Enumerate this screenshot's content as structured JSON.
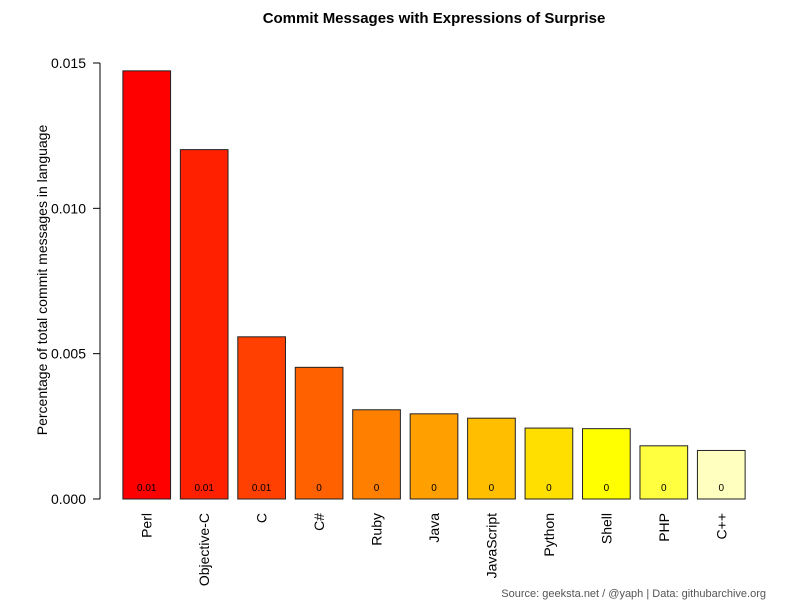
{
  "chart_data": {
    "type": "bar",
    "title": "Commit Messages with Expressions of Surprise",
    "xlabel": "",
    "ylabel": "Percentage of total commit messages in language",
    "ylim": [
      0,
      0.015
    ],
    "yticks": [
      "0.000",
      "0.005",
      "0.010",
      "0.015"
    ],
    "ytick_values": [
      0,
      0.005,
      0.01,
      0.015
    ],
    "categories": [
      "Perl",
      "Objective-C",
      "C",
      "C#",
      "Ruby",
      "Java",
      "JavaScript",
      "Python",
      "Shell",
      "PHP",
      "C++"
    ],
    "values": [
      0.01473,
      0.01202,
      0.00558,
      0.00453,
      0.00307,
      0.00293,
      0.00278,
      0.00244,
      0.00242,
      0.00183,
      0.00167
    ],
    "data_labels": [
      "0.01",
      "0.01",
      "0.01",
      "0",
      "0",
      "0",
      "0",
      "0",
      "0",
      "0",
      "0"
    ],
    "colors": [
      "#FF0000",
      "#FF2000",
      "#FF4000",
      "#FF6000",
      "#FF8000",
      "#FF9F00",
      "#FFBF00",
      "#FFDF00",
      "#FFFF00",
      "#FFFF40",
      "#FFFFBF"
    ],
    "grid": false,
    "legend": "none"
  },
  "source": "Source: geeksta.net / @yaph | Data: githubarchive.org"
}
